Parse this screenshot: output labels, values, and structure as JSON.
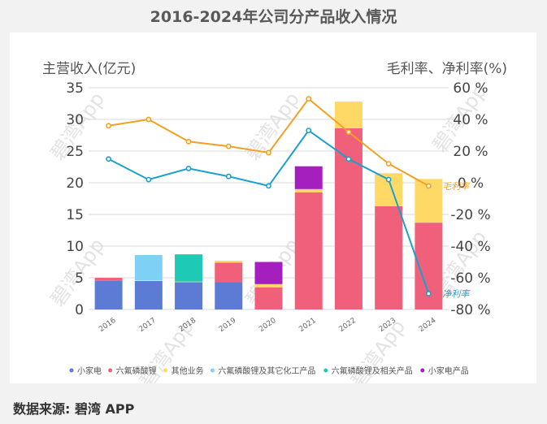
{
  "title": "2016-2024年公司分产品收入情况",
  "footer": "数据来源: 碧湾 APP",
  "watermark": "碧湾App",
  "chart_data": {
    "type": "bar",
    "categories": [
      "2016",
      "2017",
      "2018",
      "2019",
      "2020",
      "2021",
      "2022",
      "2023",
      "2024"
    ],
    "ylabel_left": "主营收入(亿元)",
    "ylabel_right": "毛利率、净利率(%)",
    "ylim_left": [
      0,
      35
    ],
    "yticks_left": [
      "0",
      "5",
      "10",
      "15",
      "20",
      "25",
      "30",
      "35"
    ],
    "ylim_right": [
      -80,
      60
    ],
    "yticks_right": [
      "-80 %",
      "-60 %",
      "-40 %",
      "-20 %",
      "0 %",
      "20 %",
      "40 %",
      "60 %"
    ],
    "grid": true,
    "legend_position": "bottom",
    "stacked_series": [
      {
        "name": "小家电",
        "color": "#5b7bd5",
        "values": [
          4.5,
          4.5,
          4.3,
          4.3,
          0,
          0,
          0,
          0,
          0
        ]
      },
      {
        "name": "六氟磷酸锂",
        "color": "#f0607a",
        "values": [
          0.5,
          0,
          0,
          3.1,
          3.5,
          18.5,
          28.6,
          16.3,
          13.7
        ]
      },
      {
        "name": "其他业务",
        "color": "#ffd966",
        "values": [
          0,
          0.1,
          0.1,
          0.3,
          0.5,
          0.5,
          4.2,
          5.2,
          6.9
        ]
      },
      {
        "name": "六氟磷酸锂及其它化工产品",
        "color": "#7fd0f5",
        "values": [
          0,
          4.0,
          0,
          0,
          0,
          0,
          0,
          0,
          0
        ]
      },
      {
        "name": "六氟磷酸锂及相关产品",
        "color": "#1ec9b6",
        "values": [
          0,
          0,
          4.3,
          0,
          0,
          0,
          0,
          0,
          0
        ]
      },
      {
        "name": "小家电产品",
        "color": "#a51fbf",
        "values": [
          0,
          0,
          0,
          0,
          3.5,
          3.6,
          0,
          0,
          0
        ]
      }
    ],
    "line_series": [
      {
        "name": "毛利率",
        "color": "#f4a020",
        "values": [
          36,
          40,
          26,
          23,
          19,
          53,
          32,
          12,
          -2
        ]
      },
      {
        "name": "净利率",
        "color": "#1aa0cc",
        "values": [
          15,
          2,
          9,
          4,
          -2,
          33,
          15,
          2,
          -70
        ]
      }
    ]
  }
}
